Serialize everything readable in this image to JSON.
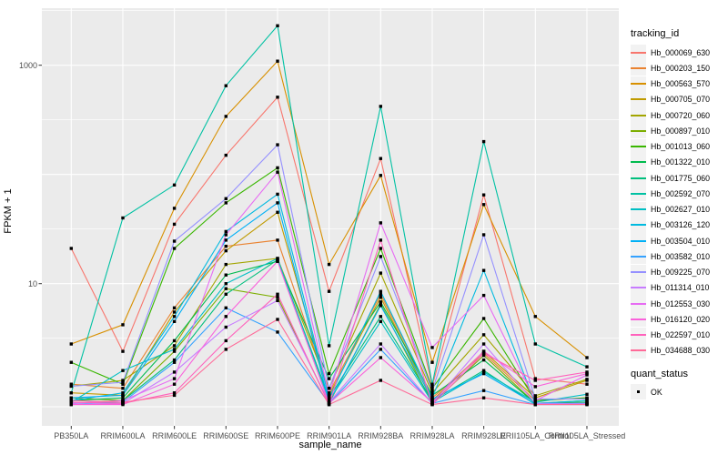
{
  "figure": {
    "y_axis": {
      "title": "FPKM + 1",
      "tick_labels": [
        "1000",
        "10"
      ],
      "tick_values": [
        1000,
        10
      ],
      "scale": "log10"
    },
    "x_axis": {
      "title": "sample_name"
    },
    "legend": {
      "tracking_title": "tracking_id",
      "quant_title": "quant_status",
      "quant_item": "OK"
    }
  },
  "colors": {
    "panel_background": "#EBEBEB",
    "gridline": "#FFFFFF",
    "tick_mark": "#333333",
    "tick_label": "#4D4D4D",
    "point": "#000000",
    "legend_key_background": "#F2F2F2"
  },
  "chart_data": {
    "type": "line",
    "title": "",
    "xlabel": "sample_name",
    "ylabel": "FPKM + 1",
    "y_scale": "log10",
    "y_tick_labels": [
      10,
      1000
    ],
    "ylim_approx": [
      0.7,
      3000
    ],
    "grid": true,
    "legend_position": "right",
    "legend_title": "tracking_id",
    "quant_status_legend": {
      "title": "quant_status",
      "items": [
        "OK"
      ],
      "marker": "black-square"
    },
    "categories": [
      "PB350LA",
      "RRIM600LA",
      "RRIM600LE",
      "RRIM600SE",
      "RRIM600PE",
      "RRIM901LA",
      "RRIM928BA",
      "RRIM928LA",
      "RRIM928LE",
      "RRII105LA_Control",
      "RRII105LA_Stressed"
    ],
    "series": [
      {
        "name": "Hb_000069_630",
        "color": "#F8766D",
        "values": [
          21,
          2.4,
          35,
          150,
          510,
          8.5,
          140,
          1.15,
          65,
          1.35,
          1.2
        ]
      },
      {
        "name": "Hb_000203_150",
        "color": "#EA8331",
        "values": [
          1.2,
          1.1,
          6.0,
          22,
          25,
          1.0,
          8.0,
          0.9,
          2.3,
          0.85,
          0.9
        ]
      },
      {
        "name": "Hb_000563_570",
        "color": "#D89000",
        "values": [
          2.8,
          4.2,
          49,
          340,
          1090,
          15,
          98,
          1.9,
          53,
          5.0,
          2.1
        ]
      },
      {
        "name": "Hb_000705_070",
        "color": "#C09B00",
        "values": [
          1.0,
          0.95,
          5.5,
          20,
          45,
          0.95,
          7.5,
          0.85,
          2.4,
          0.9,
          1.3
        ]
      },
      {
        "name": "Hb_000720_060",
        "color": "#A3A500",
        "values": [
          1.15,
          1.3,
          2.7,
          15,
          17,
          1.1,
          12.5,
          1.0,
          3.4,
          0.94,
          1.33
        ]
      },
      {
        "name": "Hb_000897_010",
        "color": "#7CAE00",
        "values": [
          0.9,
          0.85,
          2.4,
          9.0,
          7.5,
          0.8,
          6.5,
          0.8,
          2.2,
          0.8,
          0.85
        ]
      },
      {
        "name": "Hb_001013_060",
        "color": "#39B600",
        "values": [
          1.9,
          1.2,
          21,
          55,
          115,
          1.5,
          21,
          1.1,
          4.8,
          0.85,
          0.9
        ]
      },
      {
        "name": "Hb_001322_010",
        "color": "#00BB4E",
        "values": [
          0.85,
          0.9,
          3.0,
          12,
          16,
          1.35,
          6.8,
          0.95,
          2.0,
          0.8,
          0.82
        ]
      },
      {
        "name": "Hb_001775_060",
        "color": "#00BF7D",
        "values": [
          0.8,
          0.85,
          2.0,
          8.0,
          16.5,
          0.9,
          5.0,
          0.85,
          1.6,
          0.78,
          0.8
        ]
      },
      {
        "name": "Hb_002592_070",
        "color": "#00C1A3",
        "values": [
          1.0,
          40,
          80,
          650,
          2300,
          2.7,
          420,
          1.2,
          200,
          2.8,
          1.73
        ]
      },
      {
        "name": "Hb_002627_010",
        "color": "#00BFC4",
        "values": [
          0.82,
          1.6,
          2.5,
          10,
          17,
          0.85,
          4.5,
          0.82,
          1.55,
          0.82,
          0.97
        ]
      },
      {
        "name": "Hb_003126_120",
        "color": "#00BAE0",
        "values": [
          0.85,
          1.0,
          5.0,
          30,
          66,
          0.9,
          8.5,
          0.9,
          13.2,
          0.8,
          0.85
        ]
      },
      {
        "name": "Hb_003504_010",
        "color": "#00B0F6",
        "values": [
          0.9,
          0.95,
          4.5,
          25,
          55,
          0.82,
          6.3,
          0.88,
          1.5,
          0.79,
          0.8
        ]
      },
      {
        "name": "Hb_003582_010",
        "color": "#35A2FF",
        "values": [
          0.8,
          0.82,
          1.9,
          6.0,
          3.6,
          0.8,
          2.5,
          0.8,
          1.05,
          0.78,
          0.78
        ]
      },
      {
        "name": "Hb_009225_070",
        "color": "#9590FF",
        "values": [
          1.15,
          1.25,
          24.5,
          60,
          187,
          1.1,
          17.7,
          1.05,
          28,
          0.88,
          0.88
        ]
      },
      {
        "name": "Hb_011314_010",
        "color": "#C77CFF",
        "values": [
          0.78,
          0.8,
          1.55,
          4.0,
          7.0,
          0.82,
          2.8,
          0.8,
          2.8,
          0.8,
          0.8
        ]
      },
      {
        "name": "Hb_012553_030",
        "color": "#E76BF3",
        "values": [
          0.8,
          0.85,
          1.35,
          28,
          105,
          0.95,
          36,
          2.6,
          7.8,
          0.85,
          1.46
        ]
      },
      {
        "name": "Hb_016120_020",
        "color": "#FA62DB",
        "values": [
          0.78,
          0.78,
          1.2,
          5.0,
          16,
          0.8,
          2.1,
          0.82,
          2.4,
          1.14,
          1.5
        ]
      },
      {
        "name": "Hb_022597_010",
        "color": "#FF62BC",
        "values": [
          0.82,
          0.8,
          1.0,
          3.0,
          8.0,
          0.78,
          25,
          0.78,
          2.3,
          1.3,
          1.55
        ]
      },
      {
        "name": "Hb_034688_030",
        "color": "#FF6A98",
        "values": [
          0.85,
          0.82,
          0.95,
          2.5,
          4.7,
          0.78,
          1.3,
          0.78,
          0.9,
          0.78,
          0.78
        ]
      }
    ]
  }
}
